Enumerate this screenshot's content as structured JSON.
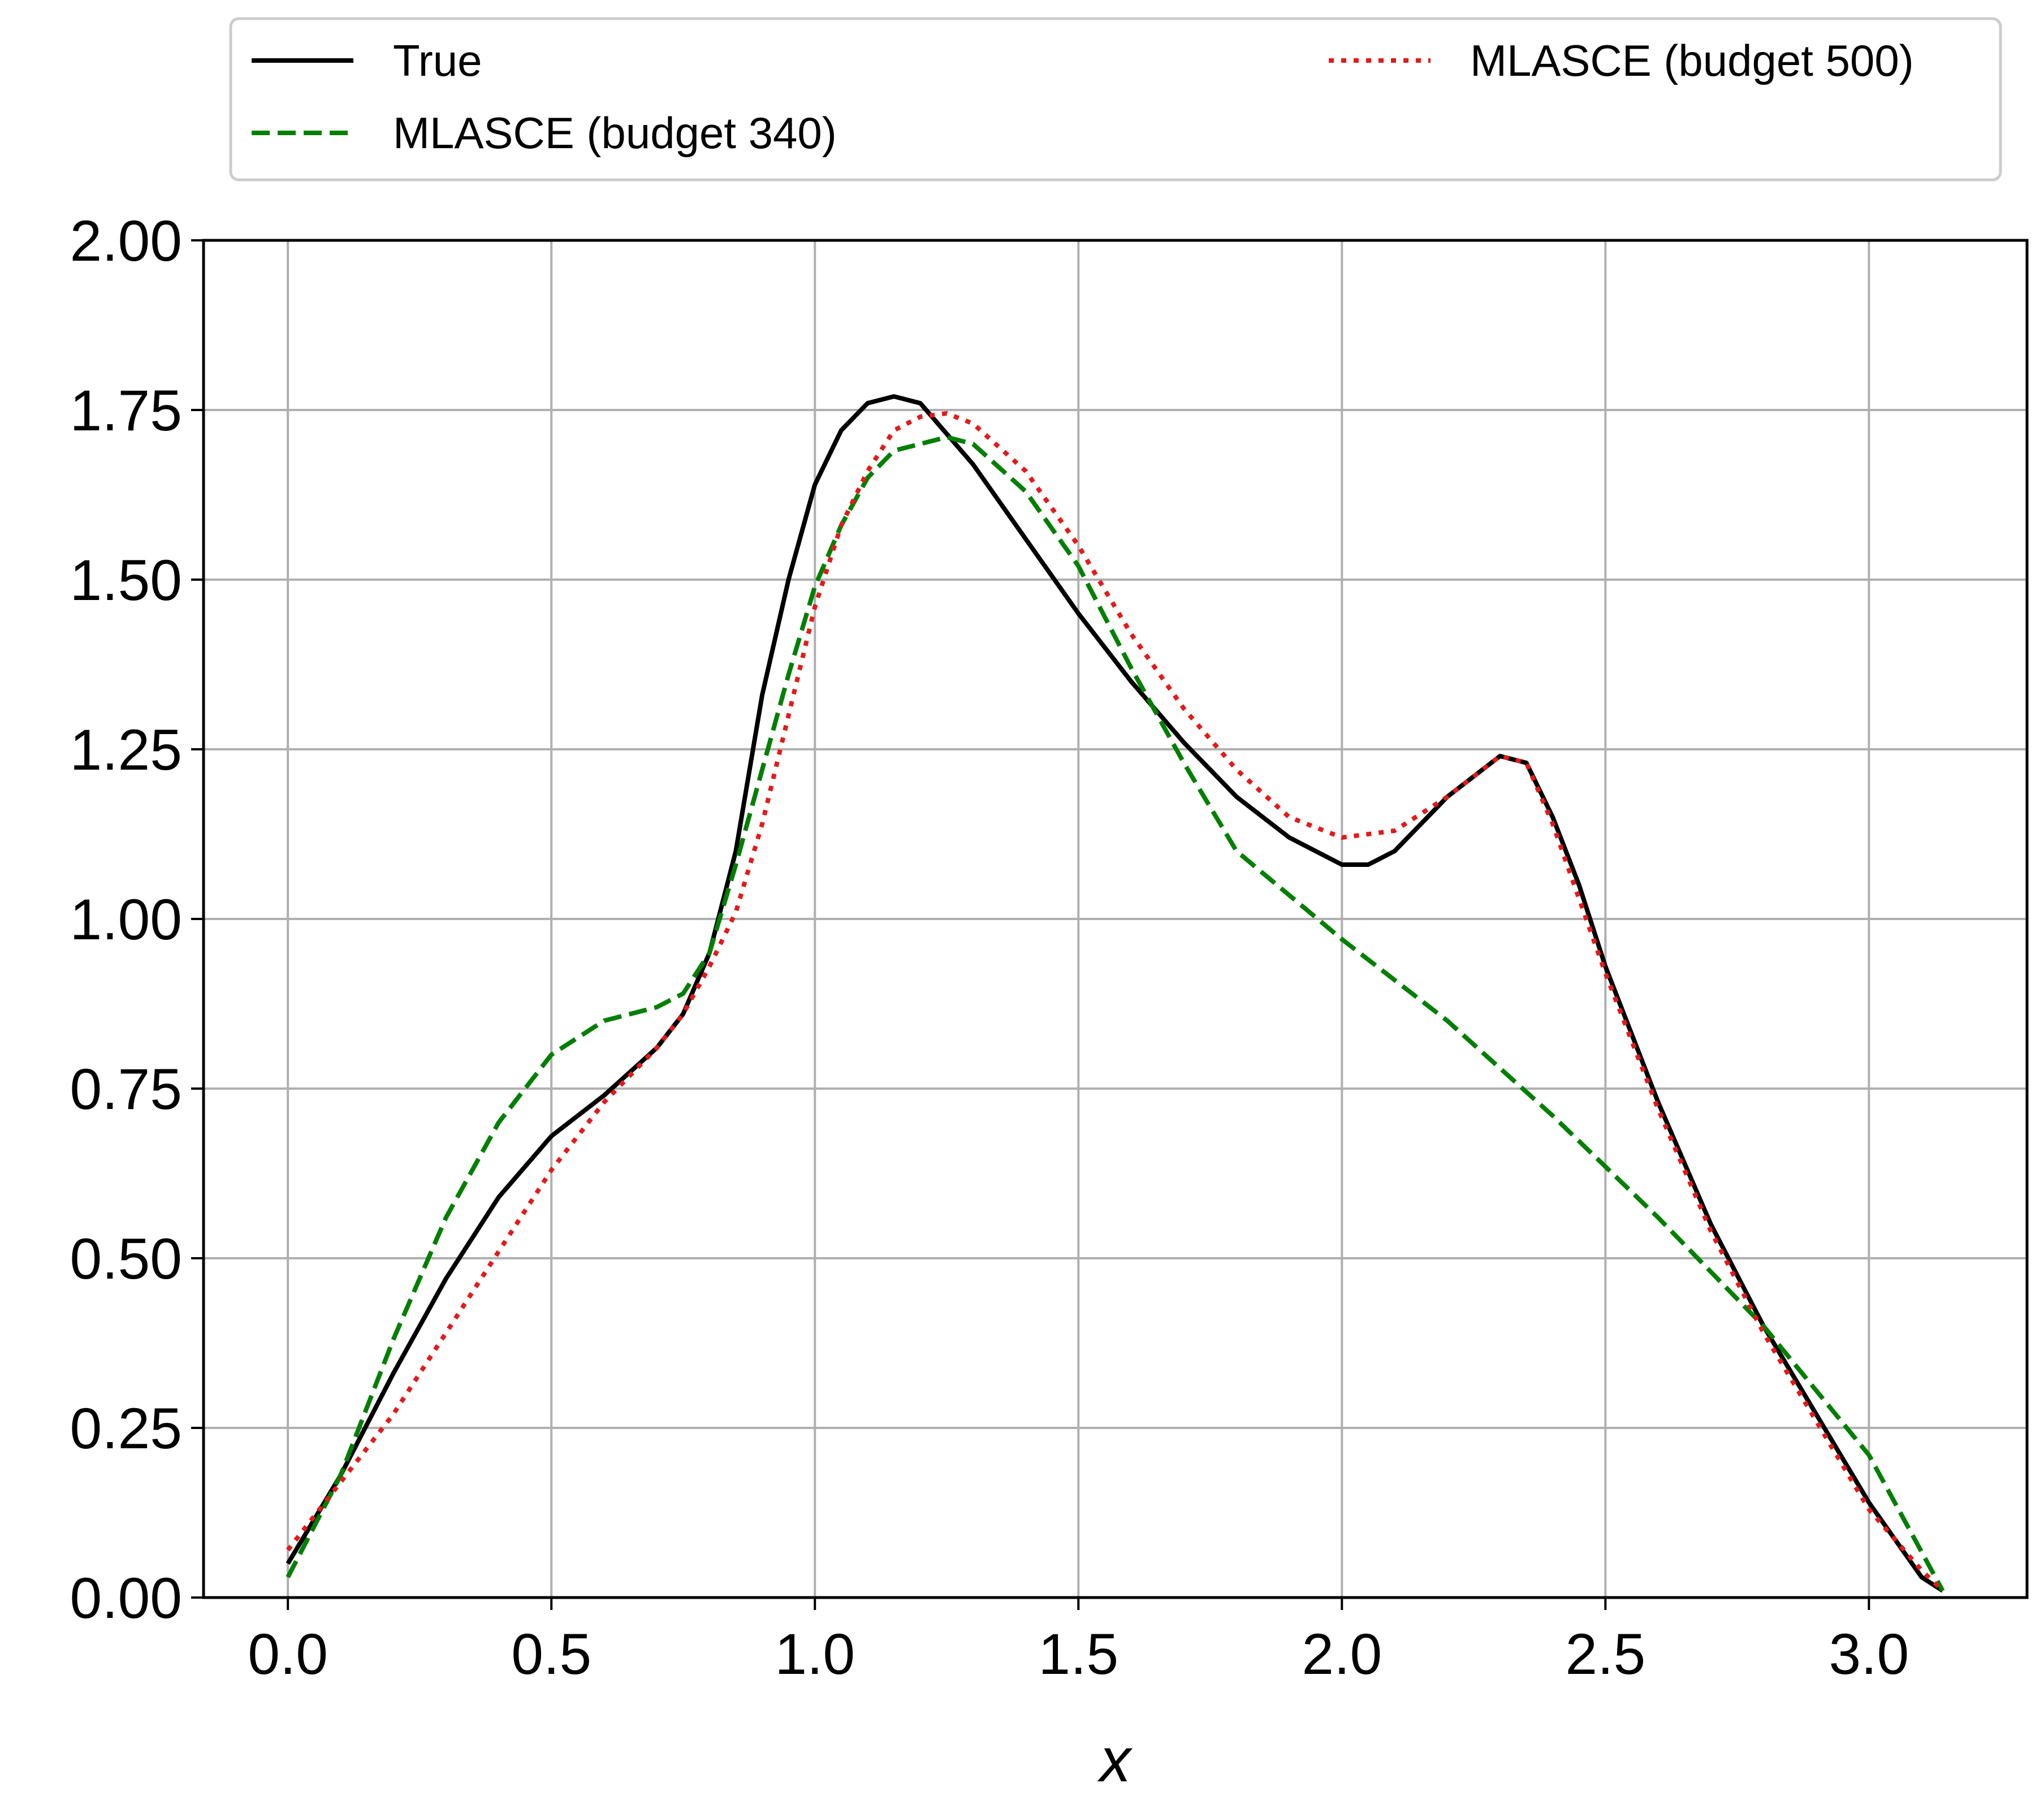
{
  "chart_data": {
    "type": "line",
    "title": "",
    "xlabel": "x",
    "ylabel": "",
    "xlim": [
      -0.16,
      3.3
    ],
    "ylim": [
      0.0,
      2.0
    ],
    "xticks": [
      0.0,
      0.5,
      1.0,
      1.5,
      2.0,
      2.5,
      3.0
    ],
    "xtick_labels": [
      "0.0",
      "0.5",
      "1.0",
      "1.5",
      "2.0",
      "2.5",
      "3.0"
    ],
    "yticks": [
      0.0,
      0.25,
      0.5,
      0.75,
      1.0,
      1.25,
      1.5,
      1.75,
      2.0
    ],
    "ytick_labels": [
      "0.00",
      "0.25",
      "0.50",
      "0.75",
      "1.00",
      "1.25",
      "1.50",
      "1.75",
      "2.00"
    ],
    "grid": true,
    "legend_position": "above plot",
    "series": [
      {
        "name": "True",
        "color": "#000000",
        "dash": "solid",
        "x": [
          0.0,
          0.1,
          0.2,
          0.3,
          0.4,
          0.5,
          0.6,
          0.7,
          0.75,
          0.8,
          0.85,
          0.9,
          0.95,
          1.0,
          1.05,
          1.1,
          1.15,
          1.2,
          1.3,
          1.4,
          1.5,
          1.6,
          1.7,
          1.8,
          1.9,
          2.0,
          2.05,
          2.1,
          2.2,
          2.3,
          2.35,
          2.4,
          2.45,
          2.5,
          2.6,
          2.7,
          2.8,
          2.9,
          3.0,
          3.1,
          3.14
        ],
        "y": [
          0.05,
          0.18,
          0.33,
          0.47,
          0.59,
          0.68,
          0.74,
          0.81,
          0.86,
          0.95,
          1.1,
          1.33,
          1.5,
          1.64,
          1.72,
          1.76,
          1.77,
          1.76,
          1.67,
          1.56,
          1.45,
          1.35,
          1.26,
          1.18,
          1.12,
          1.08,
          1.08,
          1.1,
          1.18,
          1.24,
          1.23,
          1.15,
          1.05,
          0.93,
          0.73,
          0.55,
          0.4,
          0.27,
          0.14,
          0.03,
          0.01
        ]
      },
      {
        "name": "MLASCE (budget 340)",
        "color": "#007f00",
        "dash": "dashed",
        "x": [
          0.0,
          0.1,
          0.2,
          0.3,
          0.4,
          0.5,
          0.6,
          0.7,
          0.75,
          0.8,
          0.85,
          0.9,
          0.95,
          1.0,
          1.05,
          1.1,
          1.15,
          1.2,
          1.25,
          1.3,
          1.4,
          1.5,
          1.6,
          1.7,
          1.8,
          2.0,
          2.2,
          2.4,
          2.6,
          2.8,
          3.0,
          3.14
        ],
        "y": [
          0.03,
          0.18,
          0.38,
          0.56,
          0.7,
          0.8,
          0.85,
          0.87,
          0.89,
          0.95,
          1.08,
          1.22,
          1.36,
          1.49,
          1.58,
          1.65,
          1.69,
          1.7,
          1.71,
          1.7,
          1.63,
          1.52,
          1.37,
          1.23,
          1.1,
          0.97,
          0.85,
          0.71,
          0.56,
          0.4,
          0.21,
          0.01
        ]
      },
      {
        "name": "MLASCE (budget 500)",
        "color": "#e41a1a",
        "dash": "dotted",
        "x": [
          0.0,
          0.1,
          0.2,
          0.3,
          0.4,
          0.5,
          0.6,
          0.7,
          0.75,
          0.8,
          0.85,
          0.9,
          0.95,
          1.0,
          1.05,
          1.1,
          1.15,
          1.2,
          1.25,
          1.3,
          1.4,
          1.5,
          1.6,
          1.7,
          1.8,
          1.9,
          2.0,
          2.1,
          2.2,
          2.3,
          2.35,
          2.4,
          2.45,
          2.5,
          2.6,
          2.7,
          2.8,
          2.9,
          3.0,
          3.1,
          3.14
        ],
        "y": [
          0.07,
          0.17,
          0.27,
          0.39,
          0.51,
          0.63,
          0.73,
          0.81,
          0.86,
          0.93,
          1.01,
          1.14,
          1.3,
          1.46,
          1.58,
          1.66,
          1.72,
          1.74,
          1.745,
          1.73,
          1.66,
          1.55,
          1.42,
          1.31,
          1.22,
          1.15,
          1.12,
          1.13,
          1.18,
          1.24,
          1.23,
          1.14,
          1.03,
          0.92,
          0.72,
          0.54,
          0.39,
          0.26,
          0.13,
          0.04,
          0.01
        ]
      }
    ]
  }
}
